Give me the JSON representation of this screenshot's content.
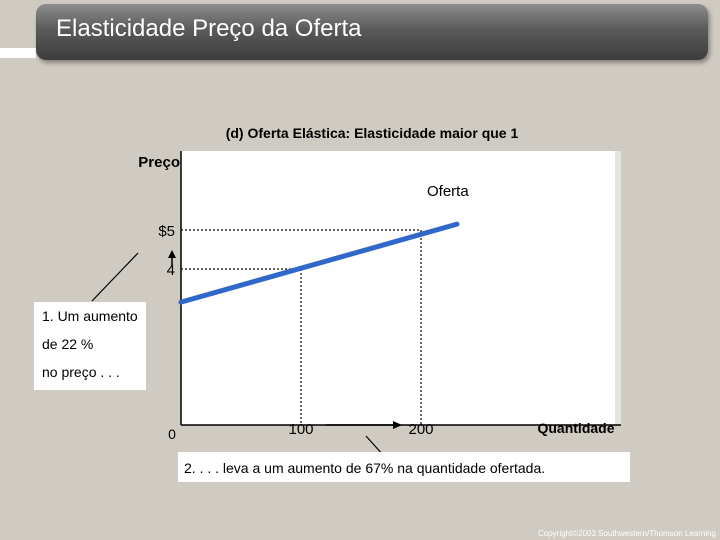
{
  "slide": {
    "title": "Elasticidade Preço da Oferta",
    "copyright": "Copyright©2003 Southwestern/Thomson Learning"
  },
  "chart_data": {
    "type": "line",
    "title": "(d) Oferta Elástica: Elasticidade maior que 1",
    "ylabel": "Preço",
    "xlabel": "Quantidade",
    "origin_label": "0",
    "series": [
      {
        "name": "Oferta",
        "x": [
          0,
          230
        ],
        "y": [
          3.15,
          5.15
        ]
      }
    ],
    "xlim": [
      0,
      230
    ],
    "ylim": [
      0,
      5.75
    ],
    "x_ticks": [
      {
        "value": 100,
        "label": "100"
      },
      {
        "value": 200,
        "label": "200"
      }
    ],
    "y_ticks": [
      {
        "value": 4,
        "label": "4"
      },
      {
        "value": 5,
        "label": "$5"
      }
    ],
    "points": [
      {
        "x": 100,
        "y": 4
      },
      {
        "x": 200,
        "y": 5
      }
    ],
    "grid": false,
    "colors": {
      "line": "#2f68c9",
      "guide": "#333333"
    },
    "annotations": {
      "price_change": [
        "1. Um aumento",
        "de 22 %",
        "no preço . . ."
      ],
      "quantity_change": "2. . . . leva a um aumento de  67% na quantidade ofertada."
    }
  }
}
